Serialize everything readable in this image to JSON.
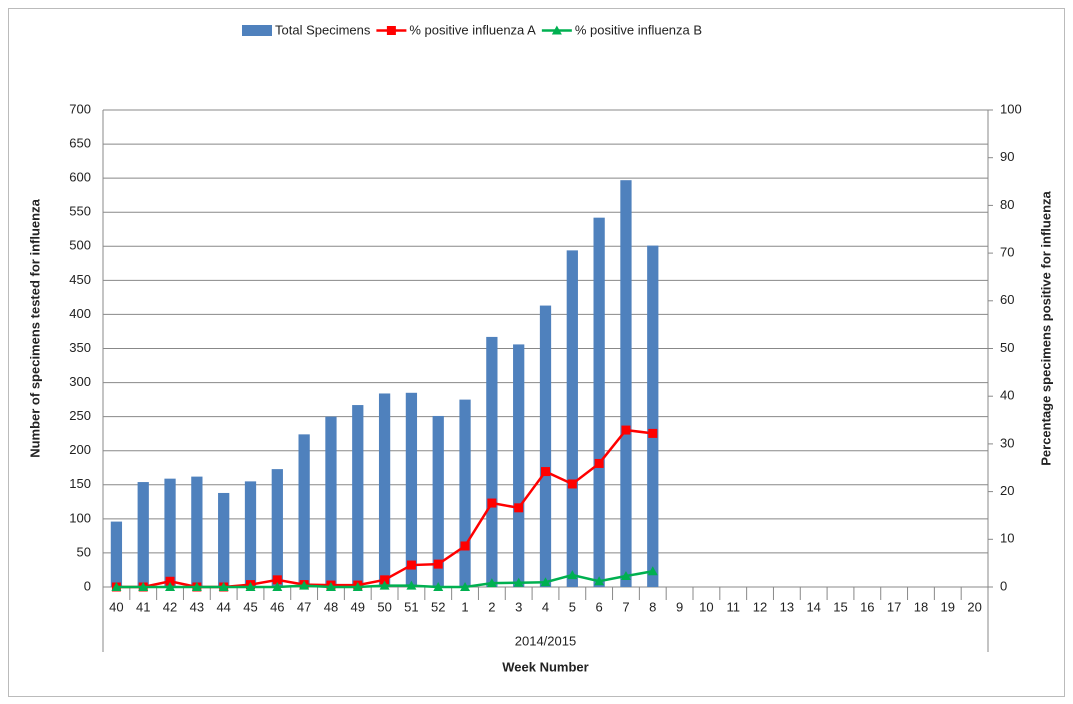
{
  "chart_data": {
    "type": "bar",
    "categories": [
      "40",
      "41",
      "42",
      "43",
      "44",
      "45",
      "46",
      "47",
      "48",
      "49",
      "50",
      "51",
      "52",
      "1",
      "2",
      "3",
      "4",
      "5",
      "6",
      "7",
      "8",
      "9",
      "10",
      "11",
      "12",
      "13",
      "14",
      "15",
      "16",
      "17",
      "18",
      "19",
      "20"
    ],
    "group_label": "2014/2015",
    "x_label": "Week Number",
    "y_label": "Number of specimens tested for influenza",
    "y2_label": "Percentage specimens positive for influenza",
    "ylim": [
      0,
      700
    ],
    "yticks": [
      0,
      50,
      100,
      150,
      200,
      250,
      300,
      350,
      400,
      450,
      500,
      550,
      600,
      650,
      700
    ],
    "y2lim": [
      0,
      100
    ],
    "y2ticks": [
      0,
      10,
      20,
      30,
      40,
      50,
      60,
      70,
      80,
      90,
      100
    ],
    "grid": true,
    "legend": "top",
    "series": [
      {
        "name": "Total Specimens",
        "type": "bar",
        "color": "#4f81bd",
        "values": [
          96,
          154,
          159,
          162,
          138,
          155,
          173,
          224,
          250,
          267,
          284,
          285,
          251,
          275,
          367,
          356,
          413,
          494,
          542,
          597,
          501,
          null,
          null,
          null,
          null,
          null,
          null,
          null,
          null,
          null,
          null,
          null,
          null
        ]
      },
      {
        "name": "% positive influenza A",
        "type": "line",
        "marker": "square",
        "axis": "y2",
        "color": "#ff0000",
        "values": [
          0,
          0,
          1.2,
          0,
          0,
          0.5,
          1.5,
          0.5,
          0.4,
          0.4,
          1.5,
          4.6,
          4.8,
          8.6,
          17.6,
          16.6,
          24.2,
          21.6,
          25.9,
          32.9,
          32.2,
          null,
          null,
          null,
          null,
          null,
          null,
          null,
          null,
          null,
          null,
          null,
          null
        ]
      },
      {
        "name": "% positive influenza B",
        "type": "line",
        "marker": "triangle",
        "axis": "y2",
        "color": "#00b050",
        "values": [
          0,
          0,
          0,
          0,
          0,
          0,
          0,
          0.3,
          0,
          0,
          0.3,
          0.3,
          0,
          0,
          0.8,
          0.9,
          1,
          2.5,
          1.2,
          2.3,
          3.3,
          null,
          null,
          null,
          null,
          null,
          null,
          null,
          null,
          null,
          null,
          null,
          null
        ]
      }
    ]
  }
}
